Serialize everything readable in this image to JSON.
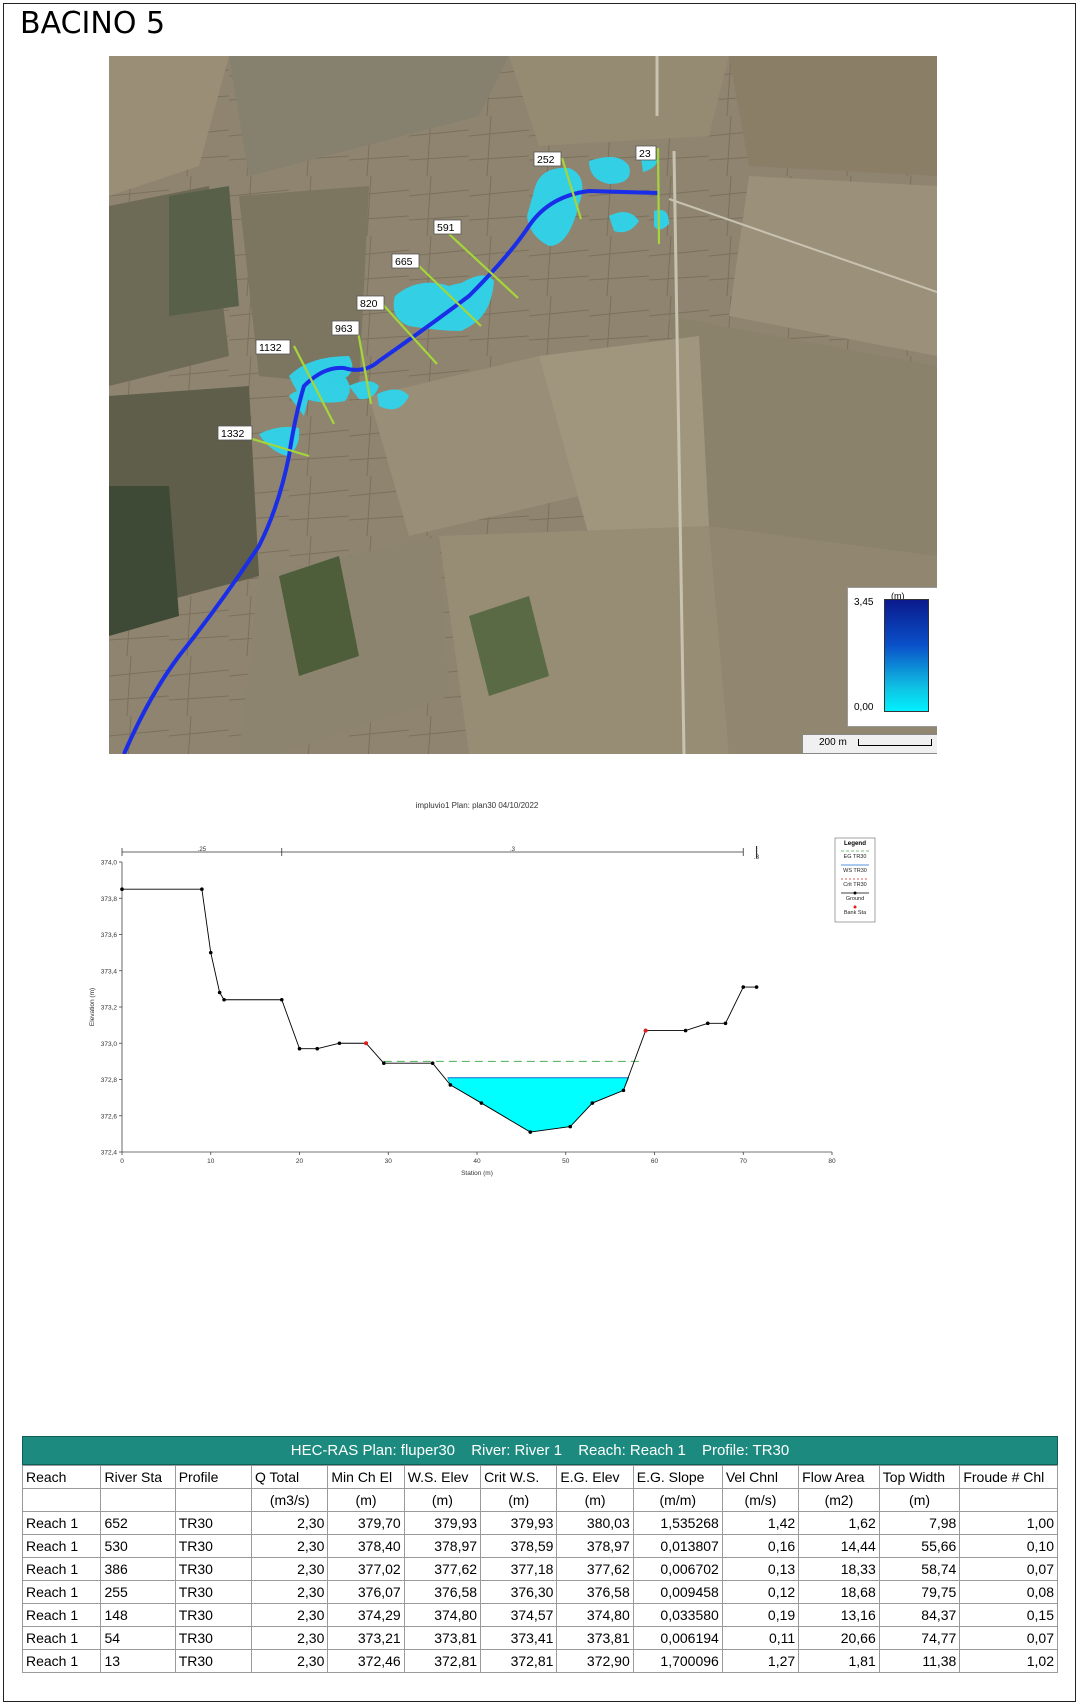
{
  "page_title": "BACINO 5",
  "map": {
    "sections": [
      "252",
      "23",
      "591",
      "665",
      "820",
      "963",
      "1132",
      "1332"
    ],
    "legend": {
      "unit": "(m)",
      "max": "3,45",
      "min": "0,00"
    },
    "scale": "200 m"
  },
  "chart_data": {
    "type": "line",
    "title": "impluvio1     Plan: plan30     04/10/2022",
    "xlabel": "Station (m)",
    "ylabel": "Elevation (m)",
    "xlim": [
      0,
      80
    ],
    "ylim": [
      372.4,
      374.0
    ],
    "x_ticks": [
      0,
      10,
      20,
      30,
      40,
      50,
      60,
      70,
      80
    ],
    "x_tick_labels": [
      "0",
      "10",
      "20",
      "30",
      "40",
      "50",
      "60",
      "70",
      "80"
    ],
    "y_ticks": [
      372.4,
      372.6,
      372.8,
      373.0,
      373.2,
      373.4,
      373.6,
      373.8,
      374.0
    ],
    "y_tick_labels": [
      "372,4",
      "372,6",
      "372,8",
      "373,0",
      "373,2",
      "373,4",
      "373,6",
      "373,8",
      "374,0"
    ],
    "manning_labels": [
      ".25",
      ".3",
      ".3"
    ],
    "legend_title": "Legend",
    "legend_entries": [
      "EG TR30",
      "WS TR30",
      "Crit TR30",
      "Ground",
      "Bank Sta"
    ],
    "ground": {
      "x": [
        0,
        9,
        10,
        11,
        11.5,
        18,
        20,
        22,
        24.5,
        27.5,
        29.5,
        35,
        37,
        40.5,
        46,
        50.5,
        53,
        56.5,
        59,
        63.5,
        66,
        68,
        70,
        71.5
      ],
      "y": [
        373.85,
        373.85,
        373.5,
        373.28,
        373.24,
        373.24,
        372.97,
        372.97,
        373.0,
        373.0,
        372.89,
        372.89,
        372.77,
        372.67,
        372.51,
        372.54,
        372.67,
        372.74,
        373.07,
        373.07,
        373.11,
        373.11,
        373.31,
        373.31
      ]
    },
    "bank_stations": [
      {
        "x": 27.5,
        "y": 373.0
      },
      {
        "x": 59,
        "y": 373.07
      }
    ],
    "water_surface": 372.81,
    "energy_grade": 372.9,
    "water_extent": [
      36.7,
      57.1
    ]
  },
  "table": {
    "title_parts": [
      "HEC-RAS  Plan: fluper30",
      "River: River 1",
      "Reach: Reach 1",
      "Profile: TR30"
    ],
    "headers": [
      "Reach",
      "River Sta",
      "Profile",
      "Q Total",
      "Min Ch El",
      "W.S. Elev",
      "Crit W.S.",
      "E.G. Elev",
      "E.G. Slope",
      "Vel Chnl",
      "Flow Area",
      "Top Width",
      "Froude # Chl"
    ],
    "units": [
      "",
      "",
      "",
      "(m3/s)",
      "(m)",
      "(m)",
      "(m)",
      "(m)",
      "(m/m)",
      "(m/s)",
      "(m2)",
      "(m)",
      ""
    ],
    "rows": [
      [
        "Reach 1",
        "652",
        "TR30",
        "2,30",
        "379,70",
        "379,93",
        "379,93",
        "380,03",
        "1,535268",
        "1,42",
        "1,62",
        "7,98",
        "1,00"
      ],
      [
        "Reach 1",
        "530",
        "TR30",
        "2,30",
        "378,40",
        "378,97",
        "378,59",
        "378,97",
        "0,013807",
        "0,16",
        "14,44",
        "55,66",
        "0,10"
      ],
      [
        "Reach 1",
        "386",
        "TR30",
        "2,30",
        "377,02",
        "377,62",
        "377,18",
        "377,62",
        "0,006702",
        "0,13",
        "18,33",
        "58,74",
        "0,07"
      ],
      [
        "Reach 1",
        "255",
        "TR30",
        "2,30",
        "376,07",
        "376,58",
        "376,30",
        "376,58",
        "0,009458",
        "0,12",
        "18,68",
        "79,75",
        "0,08"
      ],
      [
        "Reach 1",
        "148",
        "TR30",
        "2,30",
        "374,29",
        "374,80",
        "374,57",
        "374,80",
        "0,033580",
        "0,19",
        "13,16",
        "84,37",
        "0,15"
      ],
      [
        "Reach 1",
        "54",
        "TR30",
        "2,30",
        "373,21",
        "373,81",
        "373,41",
        "373,81",
        "0,006194",
        "0,11",
        "20,66",
        "74,77",
        "0,07"
      ],
      [
        "Reach 1",
        "13",
        "TR30",
        "2,30",
        "372,46",
        "372,81",
        "372,81",
        "372,90",
        "1,700096",
        "1,27",
        "1,81",
        "11,38",
        "1,02"
      ]
    ]
  }
}
